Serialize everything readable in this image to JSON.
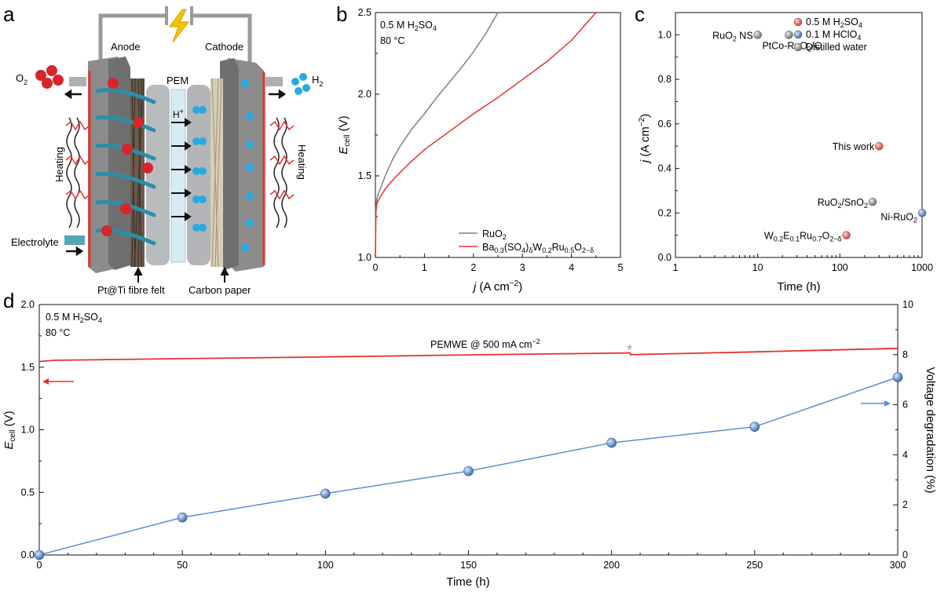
{
  "panels": {
    "a": "a",
    "b": "b",
    "c": "c",
    "d": "d"
  },
  "schematic": {
    "anode": "Anode",
    "cathode": "Cathode",
    "pem": "PEM",
    "o2": "O",
    "o2_sub": "2",
    "h2": "H",
    "h2_sub": "2",
    "hplus": "H",
    "hplus_sup": "+",
    "heating_left": "Heating",
    "heating_right": "Heating",
    "electrolyte": "Electrolyte",
    "felt": "Pt@Ti fibre felt",
    "carbon": "Carbon paper",
    "colors": {
      "o2": "#d9242b",
      "h2": "#29a9e1",
      "plate": "#8c8c8c",
      "membrane": "#d6ebf2"
    }
  },
  "chart_data": [
    {
      "id": "b",
      "type": "line",
      "annotations": [
        "0.5 M H2SO4",
        "80 °C"
      ],
      "xlabel": "j (A cm−2)",
      "ylabel": "Ecell (V)",
      "xlim": [
        0,
        5
      ],
      "ylim": [
        1.0,
        2.5
      ],
      "xticks": [
        0,
        1,
        2,
        3,
        4,
        5
      ],
      "yticks": [
        1.0,
        1.5,
        2.0,
        2.5
      ],
      "legend_position": "bottom-right",
      "series": [
        {
          "name": "RuO2",
          "color": "#808080",
          "x": [
            0,
            0.01,
            0.03,
            0.06,
            0.1,
            0.2,
            0.35,
            0.5,
            0.75,
            1.0,
            1.25,
            1.5,
            1.75,
            2.0,
            2.25,
            2.5
          ],
          "y": [
            1.0,
            1.3,
            1.36,
            1.39,
            1.42,
            1.5,
            1.6,
            1.68,
            1.79,
            1.88,
            1.98,
            2.07,
            2.16,
            2.26,
            2.37,
            2.5
          ]
        },
        {
          "name": "Ba0.3(SO4)δW0.2Ru0.5O2−δ",
          "color": "#e8302d",
          "x": [
            0,
            0.01,
            0.03,
            0.06,
            0.1,
            0.2,
            0.4,
            0.7,
            1.0,
            1.5,
            2.0,
            2.5,
            3.0,
            3.5,
            4.0,
            4.5
          ],
          "y": [
            1.0,
            1.28,
            1.33,
            1.35,
            1.37,
            1.42,
            1.49,
            1.58,
            1.66,
            1.77,
            1.88,
            1.98,
            2.09,
            2.2,
            2.33,
            2.5
          ]
        }
      ]
    },
    {
      "id": "c",
      "type": "scatter",
      "xlabel": "Time (h)",
      "ylabel": "j (A cm−2)",
      "xscale": "log",
      "xlim": [
        1,
        1000
      ],
      "ylim": [
        0,
        1.1
      ],
      "xticks": [
        1,
        10,
        100,
        1000
      ],
      "yticks": [
        0.0,
        0.2,
        0.4,
        0.6,
        0.8,
        1.0
      ],
      "legend_position": "top-right",
      "legend": [
        {
          "label": "0.5 M H2SO4",
          "color": "#f06a6a"
        },
        {
          "label": "0.1 M HClO4",
          "color": "#5b8fd1"
        },
        {
          "label": "Distilled water",
          "color": "#8a8a8a"
        }
      ],
      "points": [
        {
          "label": "RuO2 NS",
          "x": 10,
          "y": 1.0,
          "group": "Distilled water"
        },
        {
          "label": "PtCo-RuO2/C",
          "x": 24,
          "y": 1.0,
          "group": "Distilled water"
        },
        {
          "label": "This work",
          "x": 300,
          "y": 0.5,
          "group": "0.5 M H2SO4"
        },
        {
          "label": "RuO2/SnO2",
          "x": 250,
          "y": 0.25,
          "group": "Distilled water"
        },
        {
          "label": "Ni-RuO2",
          "x": 1000,
          "y": 0.2,
          "group": "0.1 M HClO4"
        },
        {
          "label": "W0.2E0.1Ru0.7O2−δ",
          "x": 120,
          "y": 0.1,
          "group": "0.5 M H2SO4"
        }
      ]
    },
    {
      "id": "d",
      "type": "line",
      "annotations": [
        "0.5 M H2SO4",
        "80 °C",
        "PEMWE @ 500 mA cm−2",
        "*"
      ],
      "xlabel": "Time (h)",
      "ylabel": "Ecell (V)",
      "y2label": "Voltage degradation (%)",
      "xlim": [
        0,
        300
      ],
      "ylim": [
        0,
        2.0
      ],
      "y2lim": [
        0,
        10
      ],
      "xticks": [
        0,
        50,
        100,
        150,
        200,
        250,
        300
      ],
      "yticks": [
        0.0,
        0.5,
        1.0,
        1.5,
        2.0
      ],
      "y2ticks": [
        0,
        2,
        4,
        6,
        8,
        10
      ],
      "series": [
        {
          "name": "Ecell",
          "axis": "left",
          "color": "#e8302d",
          "x": [
            0,
            5,
            50,
            100,
            150,
            200,
            206.5,
            206.6,
            250,
            300
          ],
          "y": [
            1.545,
            1.555,
            1.568,
            1.582,
            1.598,
            1.612,
            1.614,
            1.6,
            1.622,
            1.65
          ]
        },
        {
          "name": "Voltage degradation",
          "axis": "right",
          "color": "#5b8fd1",
          "x": [
            0,
            50,
            100,
            150,
            200,
            250,
            300
          ],
          "y": [
            0,
            1.5,
            2.45,
            3.35,
            4.48,
            5.12,
            7.1
          ]
        }
      ]
    }
  ]
}
